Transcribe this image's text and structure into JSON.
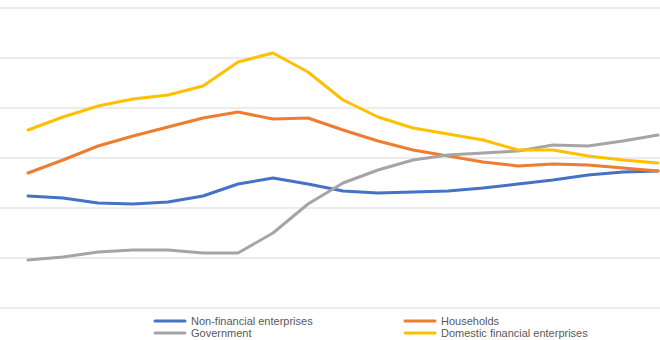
{
  "chart_data": {
    "type": "line",
    "categories": [
      null,
      null,
      null,
      null,
      null,
      null,
      null,
      null,
      null,
      null,
      null,
      null,
      null,
      null,
      null,
      null,
      null,
      null,
      null
    ],
    "series": [
      {
        "name": "Non-financial enterprises",
        "color": "#4472c4",
        "values": [
          2.24,
          2.2,
          2.1,
          2.08,
          2.12,
          2.24,
          2.48,
          2.6,
          2.48,
          2.34,
          2.3,
          2.32,
          2.34,
          2.4,
          2.48,
          2.56,
          2.66,
          2.72,
          2.74
        ]
      },
      {
        "name": "Households",
        "color": "#ed7d31",
        "values": [
          2.7,
          2.96,
          3.24,
          3.44,
          3.62,
          3.8,
          3.92,
          3.78,
          3.8,
          3.56,
          3.34,
          3.16,
          3.04,
          2.92,
          2.84,
          2.88,
          2.86,
          2.8,
          2.74
        ]
      },
      {
        "name": "Government",
        "color": "#a5a5a5",
        "values": [
          0.96,
          1.02,
          1.12,
          1.16,
          1.16,
          1.1,
          1.1,
          1.5,
          2.08,
          2.5,
          2.76,
          2.96,
          3.06,
          3.1,
          3.14,
          3.26,
          3.24,
          3.34,
          3.46
        ]
      },
      {
        "name": "Domestic financial enterprises",
        "color": "#ffc000",
        "values": [
          3.56,
          3.82,
          4.04,
          4.18,
          4.26,
          4.44,
          4.92,
          5.1,
          4.72,
          4.16,
          3.82,
          3.6,
          3.48,
          3.36,
          3.16,
          3.16,
          3.04,
          2.96,
          2.9
        ]
      }
    ],
    "ylim": [
      0,
      6
    ],
    "yticks": [
      0,
      1,
      2,
      3,
      4,
      5,
      6
    ],
    "grid": true,
    "tick_labels": false,
    "legend": "bottom"
  }
}
